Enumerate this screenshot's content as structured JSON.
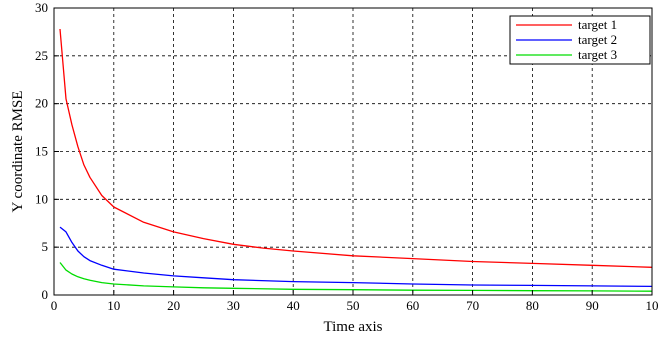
{
  "chart_data": {
    "type": "line",
    "title": "",
    "xlabel": "Time axis",
    "ylabel": "Y coordinate RMSE",
    "xlim": [
      0,
      100
    ],
    "ylim": [
      0,
      30
    ],
    "xticks": [
      "0",
      "10",
      "20",
      "30",
      "40",
      "50",
      "60",
      "70",
      "80",
      "90",
      "10"
    ],
    "yticks": [
      "0",
      "5",
      "10",
      "15",
      "20",
      "25",
      "30"
    ],
    "grid": true,
    "legend_position": "top-right",
    "series": [
      {
        "name": "target 1",
        "color": "#ff0000",
        "x": [
          1,
          2,
          3,
          4,
          5,
          6,
          8,
          10,
          15,
          20,
          25,
          30,
          35,
          40,
          50,
          60,
          70,
          80,
          90,
          100
        ],
        "y": [
          27.8,
          20.5,
          17.8,
          15.5,
          13.6,
          12.3,
          10.4,
          9.2,
          7.6,
          6.6,
          5.9,
          5.3,
          4.9,
          4.6,
          4.1,
          3.8,
          3.5,
          3.3,
          3.1,
          2.9
        ]
      },
      {
        "name": "target 2",
        "color": "#0000ff",
        "x": [
          1,
          2,
          3,
          4,
          5,
          6,
          8,
          10,
          15,
          20,
          25,
          30,
          40,
          50,
          60,
          70,
          80,
          90,
          100
        ],
        "y": [
          7.1,
          6.6,
          5.5,
          4.6,
          4.0,
          3.6,
          3.1,
          2.7,
          2.3,
          2.0,
          1.8,
          1.6,
          1.4,
          1.3,
          1.15,
          1.05,
          1.0,
          0.95,
          0.9
        ]
      },
      {
        "name": "target 3",
        "color": "#00dd00",
        "x": [
          1,
          2,
          3,
          4,
          5,
          6,
          8,
          10,
          15,
          20,
          25,
          30,
          40,
          50,
          60,
          70,
          80,
          90,
          100
        ],
        "y": [
          3.4,
          2.6,
          2.2,
          1.9,
          1.7,
          1.55,
          1.3,
          1.15,
          0.95,
          0.85,
          0.75,
          0.7,
          0.6,
          0.55,
          0.5,
          0.48,
          0.45,
          0.43,
          0.4
        ]
      }
    ]
  }
}
